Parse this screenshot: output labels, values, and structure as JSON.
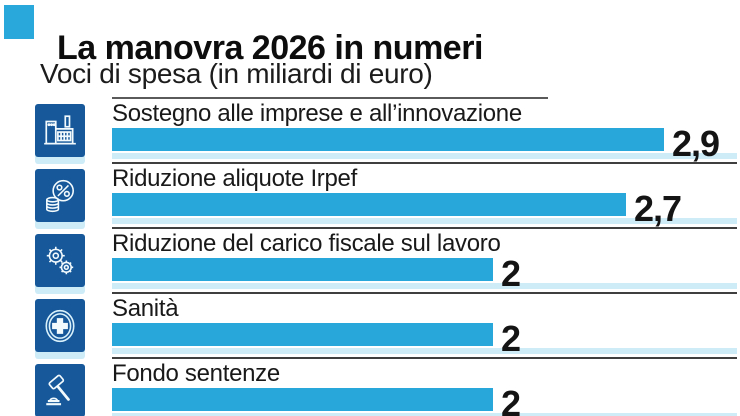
{
  "header": {
    "title": "La manovra 2026 in numeri",
    "subtitle": "Voci di spesa (in miliardi di euro)"
  },
  "colors": {
    "accent": "#29a9db",
    "bar": "#27a7da",
    "icon_tile": "#16589a",
    "pale_track": "#cdecf8",
    "separator": "#3f3f3f",
    "text": "#141414"
  },
  "chart_data": {
    "type": "bar",
    "orientation": "horizontal",
    "title": "La manovra 2026 in numeri",
    "subtitle": "Voci di spesa (in miliardi di euro)",
    "unit": "miliardi di euro",
    "categories": [
      "Sostegno alle imprese e all’innovazione",
      "Riduzione aliquote Irpef",
      "Riduzione del carico fiscale sul lavoro",
      "Sanità",
      "Fondo sentenze"
    ],
    "values": [
      2.9,
      2.7,
      2,
      2,
      2
    ],
    "value_labels": [
      "2,9",
      "2,7",
      "2",
      "2",
      "2"
    ],
    "xlim": [
      0,
      3.3
    ],
    "grid": false,
    "legend": false,
    "icons": [
      "factory-icon",
      "percent-coins-icon",
      "gears-icon",
      "medical-cross-icon",
      "gavel-icon"
    ]
  },
  "rows": [
    {
      "label": "Sostegno alle imprese e all’innovazione",
      "value": 2.9,
      "value_label": "2,9",
      "icon": "factory-icon"
    },
    {
      "label": "Riduzione aliquote Irpef",
      "value": 2.7,
      "value_label": "2,7",
      "icon": "percent-coins-icon"
    },
    {
      "label": "Riduzione del carico fiscale sul lavoro",
      "value": 2,
      "value_label": "2",
      "icon": "gears-icon"
    },
    {
      "label": "Sanità",
      "value": 2,
      "value_label": "2",
      "icon": "medical-cross-icon"
    },
    {
      "label": "Fondo sentenze",
      "value": 2,
      "value_label": "2",
      "icon": "gavel-icon"
    }
  ]
}
